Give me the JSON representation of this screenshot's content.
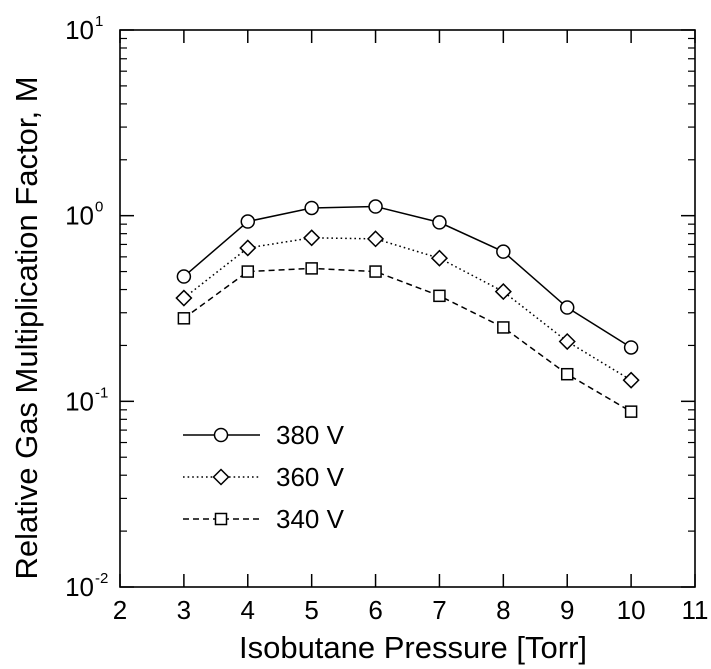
{
  "chart_data": {
    "type": "line",
    "xlabel": "Isobutane Pressure [Torr]",
    "ylabel": "Relative Gas Multiplication Factor, M",
    "xlim": [
      2,
      11
    ],
    "ylim": [
      0.01,
      10
    ],
    "yscale": "log",
    "x_ticks": [
      "2",
      "3",
      "4",
      "5",
      "6",
      "7",
      "8",
      "9",
      "10",
      "11"
    ],
    "y_ticks": [
      {
        "value": 0.01,
        "base": "10",
        "exp": "-2"
      },
      {
        "value": 0.1,
        "base": "10",
        "exp": "-1"
      },
      {
        "value": 1,
        "base": "10",
        "exp": "0"
      },
      {
        "value": 10,
        "base": "10",
        "exp": "1"
      }
    ],
    "x": [
      3,
      4,
      5,
      6,
      7,
      8,
      9,
      10
    ],
    "series": [
      {
        "name": "380 V",
        "marker": "circle",
        "line": "solid",
        "values": [
          0.47,
          0.93,
          1.1,
          1.12,
          0.92,
          0.64,
          0.32,
          0.195
        ]
      },
      {
        "name": "360 V",
        "marker": "diamond",
        "line": "dotted",
        "values": [
          0.36,
          0.67,
          0.76,
          0.75,
          0.59,
          0.39,
          0.21,
          0.13
        ]
      },
      {
        "name": "340 V",
        "marker": "square",
        "line": "dashed",
        "values": [
          0.28,
          0.5,
          0.52,
          0.5,
          0.37,
          0.25,
          0.14,
          0.088
        ]
      }
    ],
    "legend_position": "lower-left",
    "grid": false
  }
}
